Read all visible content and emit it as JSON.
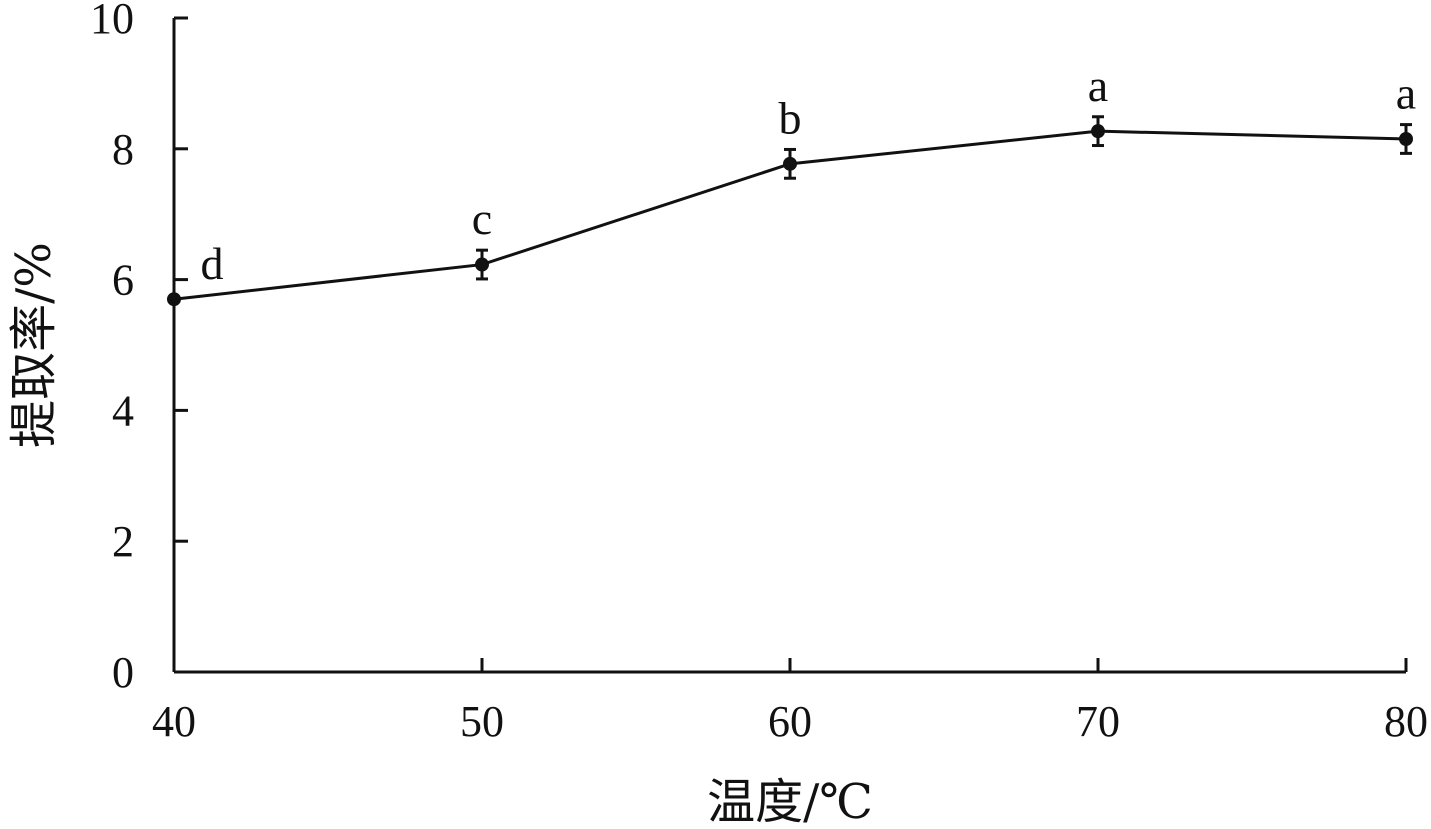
{
  "chart_data": {
    "type": "line",
    "title": "",
    "xlabel": "温度/℃",
    "ylabel": "提取率/%",
    "x": [
      40,
      50,
      60,
      70,
      80
    ],
    "xlim": [
      40,
      80
    ],
    "ylim": [
      0,
      10
    ],
    "x_ticks": [
      40,
      50,
      60,
      70,
      80
    ],
    "y_ticks": [
      0,
      2,
      4,
      6,
      8,
      10
    ],
    "grid": false,
    "series": [
      {
        "values": [
          5.7,
          6.23,
          7.77,
          8.27,
          8.15
        ],
        "error": [
          0.0,
          0.22,
          0.22,
          0.22,
          0.22
        ],
        "significance_labels": [
          "d",
          "c",
          "b",
          "a",
          "a"
        ]
      }
    ]
  }
}
